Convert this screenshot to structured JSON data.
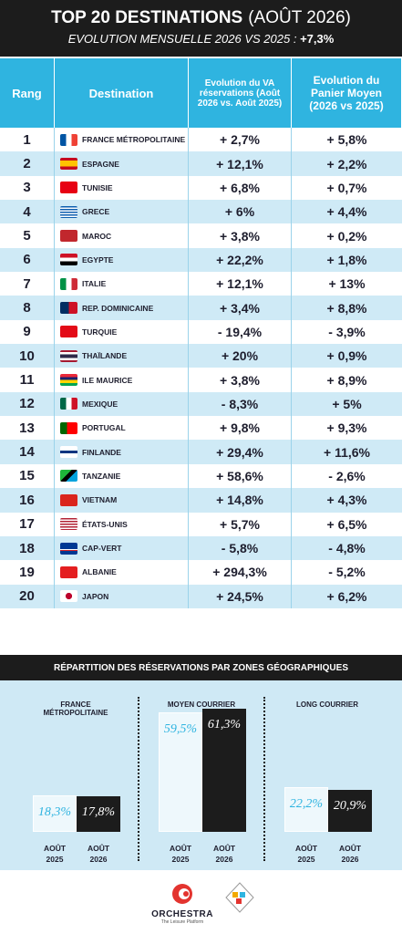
{
  "header": {
    "title": "TOP 20 DESTINATIONS",
    "title_period": "(AOÛT 2026)",
    "subtitle": "EVOLUTION MENSUELLE 2026 VS 2025 :",
    "subtitle_value": "+7,3%"
  },
  "table": {
    "columns": [
      "Rang",
      "Destination",
      "Evolution du VA réservations (Août 2026 vs. Août 2025)",
      "Evolution du Panier Moyen (2026 vs 2025)"
    ],
    "rows": [
      [
        1,
        "FRANCE MÉTROPOLITAINE",
        "+ 2,7%",
        "+ 5,8%"
      ],
      [
        2,
        "ESPAGNE",
        "+ 12,1%",
        "+ 2,2%"
      ],
      [
        3,
        "TUNISIE",
        "+ 6,8%",
        "+ 0,7%"
      ],
      [
        4,
        "GRECE",
        "+ 6%",
        "+ 4,4%"
      ],
      [
        5,
        "MAROC",
        "+ 3,8%",
        "+ 0,2%"
      ],
      [
        6,
        "EGYPTE",
        "+ 22,2%",
        "+ 1,8%"
      ],
      [
        7,
        "ITALIE",
        "+ 12,1%",
        "+ 13%"
      ],
      [
        8,
        "REP. DOMINICAINE",
        "+ 3,4%",
        "+ 8,8%"
      ],
      [
        9,
        "TURQUIE",
        "- 19,4%",
        "- 3,9%"
      ],
      [
        10,
        "THAÏLANDE",
        "+ 20%",
        "+ 0,9%"
      ],
      [
        11,
        "ILE MAURICE",
        "+ 3,8%",
        "+ 8,9%"
      ],
      [
        12,
        "MEXIQUE",
        "- 8,3%",
        "+ 5%"
      ],
      [
        13,
        "PORTUGAL",
        "+ 9,8%",
        "+ 9,3%"
      ],
      [
        14,
        "FINLANDE",
        "+ 29,4%",
        "+ 11,6%"
      ],
      [
        15,
        "TANZANIE",
        "+ 58,6%",
        "- 2,6%"
      ],
      [
        16,
        "VIETNAM",
        "+ 14,8%",
        "+ 4,3%"
      ],
      [
        17,
        "ÉTATS-UNIS",
        "+ 5,7%",
        "+ 6,5%"
      ],
      [
        18,
        "CAP-VERT",
        "- 5,8%",
        "- 4,8%"
      ],
      [
        19,
        "ALBANIE",
        "+ 294,3%",
        "- 5,2%"
      ],
      [
        20,
        "JAPON",
        "+ 24,5%",
        "+ 6,2%"
      ]
    ]
  },
  "chart_data": {
    "type": "bar",
    "title": "RÉPARTITION DES RÉSERVATIONS PAR ZONES GÉOGRAPHIQUES",
    "categories": [
      "FRANCE MÉTROPOLITAINE",
      "MOYEN COURRIER",
      "LONG COURRIER"
    ],
    "series": [
      {
        "name": "AOÛT 2025",
        "color": "#eef8fc",
        "values": [
          18.3,
          59.5,
          22.2
        ],
        "value_labels": [
          "18,3%",
          "59,5%",
          "22,2%"
        ]
      },
      {
        "name": "AOÛT 2026",
        "color": "#1c1c1c",
        "values": [
          17.8,
          61.3,
          20.9
        ],
        "value_labels": [
          "17,8%",
          "61,3%",
          "20,9%"
        ]
      }
    ]
  },
  "logos": {
    "brand": "ORCHESTRA",
    "tagline": "The Leisure Platform"
  }
}
